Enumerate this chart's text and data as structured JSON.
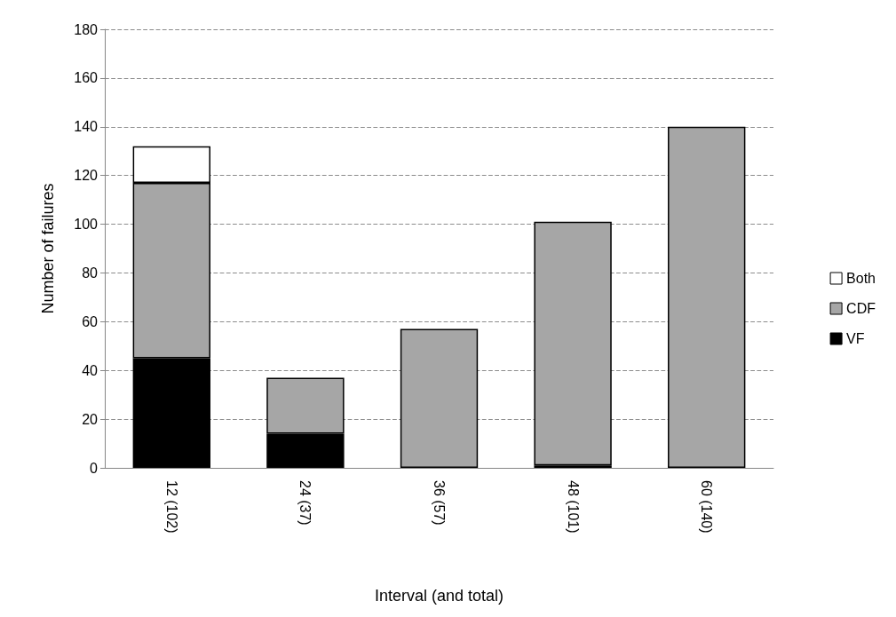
{
  "chart_data": {
    "type": "bar",
    "stacked": true,
    "xlabel": "Interval (and total)",
    "ylabel": "Number of failures",
    "categories": [
      "12 (102)",
      "24 (37)",
      "36 (57)",
      "48 (101)",
      "60 (140)"
    ],
    "series": [
      {
        "name": "VF",
        "color": "#000000",
        "values": [
          45,
          14,
          null,
          1,
          null
        ]
      },
      {
        "name": "CDF",
        "color": "#a6a6a6",
        "values": [
          72,
          23,
          57,
          100,
          140
        ]
      },
      {
        "name": "Both",
        "color": "#ffffff",
        "values": [
          15,
          null,
          null,
          null,
          null
        ]
      }
    ],
    "ylim": [
      0,
      180
    ],
    "yticks": [
      0,
      20,
      40,
      60,
      80,
      100,
      120,
      140,
      160,
      180
    ],
    "grid": "y",
    "legend": "right"
  }
}
